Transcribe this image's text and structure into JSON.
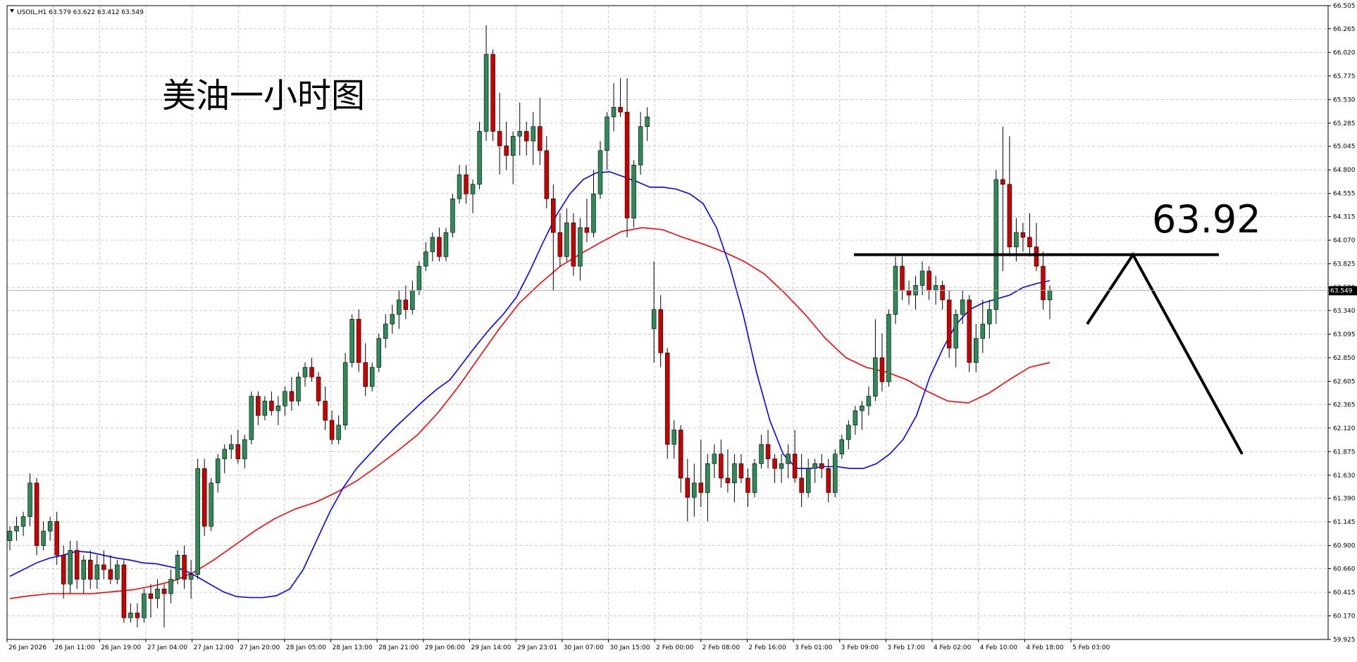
{
  "header": {
    "symbol_line": "USOIL,H1  63.579 63.622 63.412 63.549"
  },
  "annotations": {
    "title_cn": "美油一小时图",
    "level_label": "63.92"
  },
  "colors": {
    "bull": "#2e8b57",
    "bear": "#cc0000",
    "ma_fast": "#0000ff",
    "ma_slow": "#ff0000",
    "grid": "#c8c8c8",
    "axis": "#000000",
    "price_tag_bg": "#000000"
  },
  "chart_data": {
    "type": "candlestick",
    "symbol": "USOIL",
    "timeframe": "H1",
    "ohlc_header": {
      "open": 63.579,
      "high": 63.622,
      "low": 63.412,
      "close": 63.549
    },
    "current_price": 63.549,
    "ylim": [
      59.925,
      66.505
    ],
    "y_ticks": [
      66.505,
      66.265,
      66.02,
      65.775,
      65.53,
      65.285,
      65.045,
      64.8,
      64.555,
      64.315,
      64.07,
      63.825,
      63.58,
      63.34,
      63.095,
      62.85,
      62.605,
      62.365,
      62.12,
      61.875,
      61.63,
      61.39,
      61.145,
      60.9,
      60.66,
      60.415,
      60.17,
      59.925
    ],
    "x_tick_labels": [
      "26 Jan 2026",
      "26 Jan 11:00",
      "26 Jan 19:00",
      "27 Jan 04:00",
      "27 Jan 12:00",
      "27 Jan 20:00",
      "28 Jan 05:00",
      "28 Jan 13:00",
      "28 Jan 21:00",
      "29 Jan 06:00",
      "29 Jan 14:00",
      "29 Jan 23:01",
      "30 Jan 07:00",
      "30 Jan 15:00",
      "2 Feb 00:00",
      "2 Feb 08:00",
      "2 Feb 16:00",
      "3 Feb 01:00",
      "3 Feb 09:00",
      "3 Feb 17:00",
      "4 Feb 02:00",
      "4 Feb 10:00",
      "4 Feb 18:00",
      "5 Feb 03:00"
    ],
    "resistance_level": 63.92,
    "candles": [
      [
        60.95,
        61.1,
        60.85,
        61.05
      ],
      [
        61.05,
        61.2,
        60.95,
        61.1
      ],
      [
        61.1,
        61.25,
        61.0,
        61.2
      ],
      [
        61.2,
        61.65,
        61.1,
        61.55
      ],
      [
        61.55,
        61.6,
        60.8,
        60.9
      ],
      [
        60.9,
        61.15,
        60.85,
        61.05
      ],
      [
        61.05,
        61.2,
        60.95,
        61.15
      ],
      [
        61.15,
        61.25,
        60.7,
        60.8
      ],
      [
        60.8,
        60.9,
        60.35,
        60.5
      ],
      [
        60.5,
        60.95,
        60.4,
        60.85
      ],
      [
        60.85,
        60.95,
        60.45,
        60.55
      ],
      [
        60.55,
        60.8,
        60.4,
        60.75
      ],
      [
        60.75,
        60.85,
        60.45,
        60.55
      ],
      [
        60.55,
        60.8,
        60.45,
        60.7
      ],
      [
        60.7,
        60.85,
        60.55,
        60.65
      ],
      [
        60.65,
        60.8,
        60.5,
        60.55
      ],
      [
        60.55,
        60.75,
        60.5,
        60.7
      ],
      [
        60.7,
        60.75,
        60.1,
        60.15
      ],
      [
        60.15,
        60.3,
        60.1,
        60.2
      ],
      [
        60.2,
        60.3,
        60.05,
        60.15
      ],
      [
        60.15,
        60.45,
        60.1,
        60.4
      ],
      [
        60.4,
        60.5,
        60.15,
        60.35
      ],
      [
        60.35,
        60.55,
        60.25,
        60.45
      ],
      [
        60.45,
        60.5,
        60.05,
        60.4
      ],
      [
        60.4,
        60.65,
        60.3,
        60.55
      ],
      [
        60.55,
        60.85,
        60.5,
        60.8
      ],
      [
        60.8,
        60.9,
        60.45,
        60.55
      ],
      [
        60.55,
        60.75,
        60.35,
        60.6
      ],
      [
        60.6,
        61.8,
        60.55,
        61.7
      ],
      [
        61.7,
        61.8,
        61.0,
        61.1
      ],
      [
        61.1,
        61.6,
        61.05,
        61.55
      ],
      [
        61.55,
        61.85,
        61.45,
        61.8
      ],
      [
        61.8,
        61.95,
        61.65,
        61.9
      ],
      [
        61.9,
        62.05,
        61.8,
        61.95
      ],
      [
        61.95,
        62.1,
        61.75,
        61.8
      ],
      [
        61.8,
        62.05,
        61.7,
        62.0
      ],
      [
        62.0,
        62.5,
        61.95,
        62.45
      ],
      [
        62.45,
        62.5,
        62.15,
        62.25
      ],
      [
        62.25,
        62.45,
        62.2,
        62.4
      ],
      [
        62.4,
        62.5,
        62.25,
        62.3
      ],
      [
        62.3,
        62.45,
        62.15,
        62.35
      ],
      [
        62.35,
        62.55,
        62.25,
        62.5
      ],
      [
        62.5,
        62.65,
        62.3,
        62.4
      ],
      [
        62.4,
        62.7,
        62.35,
        62.65
      ],
      [
        62.65,
        62.8,
        62.55,
        62.75
      ],
      [
        62.75,
        62.85,
        62.6,
        62.65
      ],
      [
        62.65,
        62.7,
        62.35,
        62.4
      ],
      [
        62.4,
        62.55,
        62.1,
        62.2
      ],
      [
        62.2,
        62.3,
        61.95,
        62.0
      ],
      [
        62.0,
        62.25,
        61.95,
        62.15
      ],
      [
        62.15,
        62.9,
        62.1,
        62.8
      ],
      [
        62.8,
        63.3,
        62.75,
        63.25
      ],
      [
        63.25,
        63.35,
        62.7,
        62.8
      ],
      [
        62.8,
        63.0,
        62.45,
        62.55
      ],
      [
        62.55,
        62.8,
        62.5,
        62.75
      ],
      [
        62.75,
        63.1,
        62.7,
        63.05
      ],
      [
        63.05,
        63.3,
        62.95,
        63.2
      ],
      [
        63.2,
        63.4,
        63.1,
        63.3
      ],
      [
        63.3,
        63.55,
        63.15,
        63.45
      ],
      [
        63.45,
        63.6,
        63.25,
        63.35
      ],
      [
        63.35,
        63.65,
        63.3,
        63.55
      ],
      [
        63.55,
        63.85,
        63.5,
        63.8
      ],
      [
        63.8,
        64.05,
        63.75,
        63.95
      ],
      [
        63.95,
        64.15,
        63.85,
        64.1
      ],
      [
        64.1,
        64.2,
        63.85,
        63.9
      ],
      [
        63.9,
        64.2,
        63.85,
        64.15
      ],
      [
        64.15,
        64.55,
        64.1,
        64.5
      ],
      [
        64.5,
        64.85,
        64.45,
        64.75
      ],
      [
        64.75,
        64.85,
        64.45,
        64.55
      ],
      [
        64.55,
        64.7,
        64.35,
        64.65
      ],
      [
        64.65,
        65.3,
        64.6,
        65.2
      ],
      [
        65.2,
        66.3,
        65.1,
        66.0
      ],
      [
        66.0,
        66.05,
        65.1,
        65.2
      ],
      [
        65.2,
        65.6,
        64.75,
        65.05
      ],
      [
        65.05,
        65.3,
        64.8,
        64.95
      ],
      [
        64.95,
        65.2,
        64.65,
        65.15
      ],
      [
        65.15,
        65.5,
        64.95,
        65.2
      ],
      [
        65.2,
        65.3,
        64.95,
        65.1
      ],
      [
        65.1,
        65.4,
        64.85,
        65.25
      ],
      [
        65.25,
        65.55,
        64.85,
        65.0
      ],
      [
        65.0,
        65.15,
        64.4,
        64.5
      ],
      [
        64.5,
        64.65,
        63.55,
        64.15
      ],
      [
        64.15,
        64.35,
        63.8,
        63.9
      ],
      [
        63.9,
        64.4,
        63.85,
        64.25
      ],
      [
        64.25,
        64.35,
        63.7,
        63.8
      ],
      [
        63.8,
        64.3,
        63.65,
        64.2
      ],
      [
        64.2,
        64.5,
        64.05,
        64.15
      ],
      [
        64.15,
        64.8,
        64.1,
        64.55
      ],
      [
        64.55,
        65.1,
        64.5,
        65.0
      ],
      [
        65.0,
        65.4,
        64.8,
        65.35
      ],
      [
        65.35,
        65.7,
        65.2,
        65.45
      ],
      [
        65.45,
        65.75,
        65.35,
        65.4
      ],
      [
        65.4,
        65.75,
        64.1,
        64.3
      ],
      [
        64.3,
        64.9,
        64.2,
        64.85
      ],
      [
        64.85,
        65.4,
        64.75,
        65.25
      ],
      [
        65.25,
        65.45,
        65.1,
        65.35
      ],
      [
        63.15,
        63.85,
        62.8,
        63.35
      ],
      [
        63.35,
        63.5,
        62.75,
        62.9
      ],
      [
        62.9,
        62.95,
        61.8,
        61.95
      ],
      [
        61.95,
        62.2,
        61.8,
        62.1
      ],
      [
        62.1,
        62.15,
        61.45,
        61.6
      ],
      [
        61.6,
        61.8,
        61.15,
        61.4
      ],
      [
        61.4,
        61.75,
        61.2,
        61.55
      ],
      [
        61.55,
        62.0,
        61.3,
        61.45
      ],
      [
        61.45,
        61.85,
        61.15,
        61.75
      ],
      [
        61.75,
        61.95,
        61.6,
        61.85
      ],
      [
        61.85,
        62.0,
        61.5,
        61.6
      ],
      [
        61.6,
        61.9,
        61.45,
        61.55
      ],
      [
        61.55,
        61.85,
        61.35,
        61.75
      ],
      [
        61.75,
        61.85,
        61.55,
        61.6
      ],
      [
        61.6,
        61.7,
        61.3,
        61.45
      ],
      [
        61.45,
        61.8,
        61.4,
        61.75
      ],
      [
        61.75,
        62.05,
        61.7,
        61.95
      ],
      [
        61.95,
        62.1,
        61.7,
        61.8
      ],
      [
        61.8,
        61.85,
        61.55,
        61.7
      ],
      [
        61.7,
        61.85,
        61.55,
        61.75
      ],
      [
        61.75,
        61.95,
        61.6,
        61.85
      ],
      [
        61.85,
        62.1,
        61.55,
        61.6
      ],
      [
        61.6,
        61.85,
        61.3,
        61.45
      ],
      [
        61.45,
        61.8,
        61.4,
        61.7
      ],
      [
        61.7,
        61.8,
        61.55,
        61.75
      ],
      [
        61.75,
        61.85,
        61.6,
        61.7
      ],
      [
        61.7,
        61.8,
        61.35,
        61.45
      ],
      [
        61.45,
        61.9,
        61.4,
        61.85
      ],
      [
        61.85,
        62.05,
        61.8,
        62.0
      ],
      [
        62.0,
        62.2,
        61.9,
        62.15
      ],
      [
        62.15,
        62.35,
        62.05,
        62.3
      ],
      [
        62.3,
        62.4,
        62.1,
        62.35
      ],
      [
        62.35,
        62.55,
        62.25,
        62.45
      ],
      [
        62.45,
        63.25,
        62.4,
        62.85
      ],
      [
        62.85,
        63.1,
        62.5,
        62.6
      ],
      [
        62.6,
        63.35,
        62.55,
        63.3
      ],
      [
        63.3,
        63.9,
        63.2,
        63.8
      ],
      [
        63.8,
        63.9,
        63.45,
        63.55
      ],
      [
        63.55,
        63.65,
        63.4,
        63.5
      ],
      [
        63.5,
        63.7,
        63.35,
        63.6
      ],
      [
        63.6,
        63.85,
        63.5,
        63.75
      ],
      [
        63.75,
        63.8,
        63.45,
        63.55
      ],
      [
        63.55,
        63.7,
        63.4,
        63.6
      ],
      [
        63.6,
        63.65,
        63.35,
        63.45
      ],
      [
        63.45,
        63.55,
        62.85,
        62.95
      ],
      [
        62.95,
        63.35,
        62.75,
        63.3
      ],
      [
        63.3,
        63.55,
        63.2,
        63.45
      ],
      [
        63.45,
        63.5,
        62.7,
        62.8
      ],
      [
        62.8,
        63.2,
        62.7,
        63.05
      ],
      [
        63.05,
        63.45,
        62.9,
        63.2
      ],
      [
        63.2,
        63.45,
        63.05,
        63.35
      ],
      [
        63.35,
        64.8,
        63.2,
        64.7
      ],
      [
        64.7,
        65.25,
        63.75,
        64.65
      ],
      [
        64.65,
        65.15,
        63.9,
        64.0
      ],
      [
        64.0,
        64.3,
        63.85,
        64.15
      ],
      [
        64.15,
        64.25,
        63.95,
        64.1
      ],
      [
        64.1,
        64.35,
        63.9,
        64.0
      ],
      [
        64.0,
        64.25,
        63.75,
        63.8
      ],
      [
        63.8,
        63.95,
        63.35,
        63.45
      ],
      [
        63.45,
        63.6,
        63.25,
        63.55
      ]
    ],
    "ma_fast": {
      "period_label": "",
      "values": [
        60.58,
        60.65,
        60.72,
        60.77,
        60.8,
        60.84,
        60.83,
        60.8,
        60.77,
        60.75,
        60.72,
        60.71,
        60.68,
        60.65,
        60.58,
        60.5,
        60.42,
        60.37,
        60.36,
        60.36,
        60.38,
        60.45,
        60.65,
        60.95,
        61.25,
        61.5,
        61.7,
        61.85,
        62.0,
        62.14,
        62.27,
        62.4,
        62.52,
        62.62,
        62.8,
        62.98,
        63.15,
        63.3,
        63.48,
        63.75,
        64.05,
        64.33,
        64.55,
        64.7,
        64.77,
        64.78,
        64.73,
        64.68,
        64.62,
        64.62,
        64.6,
        64.55,
        64.45,
        64.2,
        63.8,
        63.3,
        62.7,
        62.2,
        61.85,
        61.7,
        61.7,
        61.72,
        61.72,
        61.7,
        61.7,
        61.75,
        61.85,
        62.0,
        62.25,
        62.65,
        62.95,
        63.2,
        63.35,
        63.42,
        63.46,
        63.5,
        63.58,
        63.62,
        63.65
      ]
    },
    "ma_slow": {
      "period_label": "",
      "values": [
        60.35,
        60.38,
        60.4,
        60.4,
        60.4,
        60.42,
        60.44,
        60.48,
        60.53,
        60.62,
        60.75,
        60.9,
        61.05,
        61.18,
        61.28,
        61.35,
        61.45,
        61.57,
        61.72,
        61.88,
        62.05,
        62.28,
        62.55,
        62.85,
        63.15,
        63.42,
        63.62,
        63.8,
        63.93,
        64.05,
        64.16,
        64.2,
        64.18,
        64.1,
        64.03,
        63.95,
        63.85,
        63.72,
        63.52,
        63.3,
        63.05,
        62.85,
        62.75,
        62.7,
        62.62,
        62.5,
        62.4,
        62.38,
        62.48,
        62.62,
        62.75,
        62.8
      ]
    }
  }
}
